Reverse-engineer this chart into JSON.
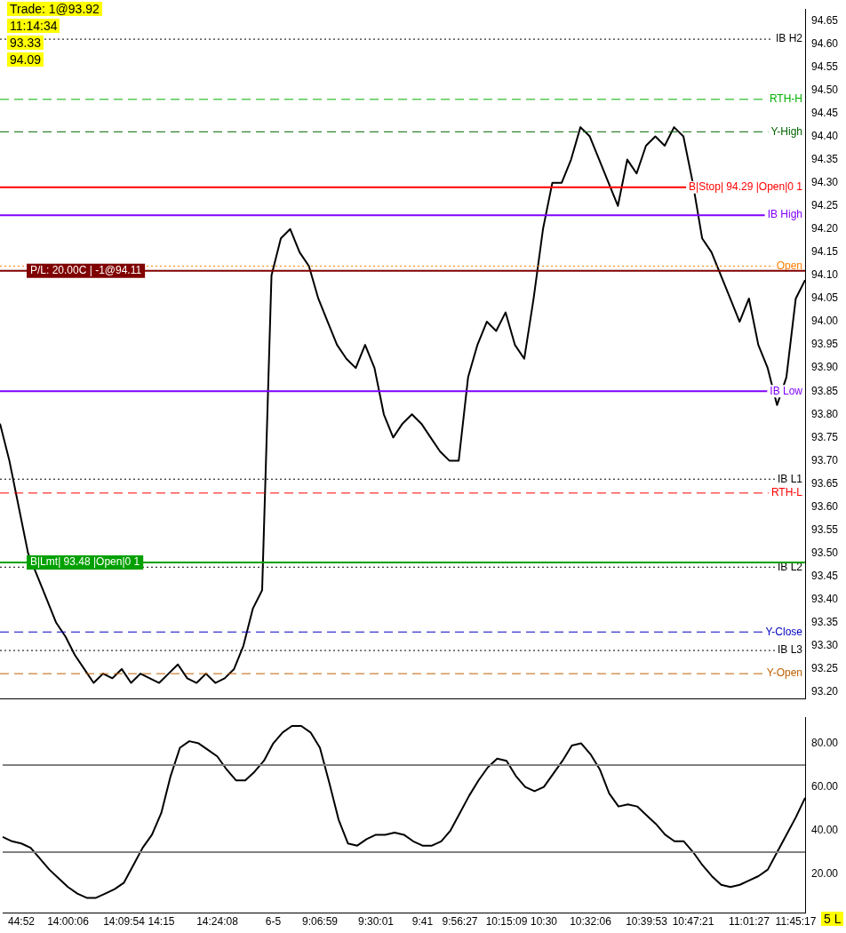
{
  "chart_data": [
    {
      "type": "line",
      "categories": [
        null,
        null,
        null,
        null,
        null,
        null,
        null,
        null,
        null,
        null,
        null,
        null,
        null,
        null,
        null,
        null,
        null,
        null,
        null,
        null,
        null,
        null,
        null,
        null,
        null,
        null,
        null,
        null,
        null,
        null,
        null,
        null,
        null,
        null,
        null,
        null,
        null,
        null,
        null,
        null,
        null,
        null,
        null,
        null,
        null,
        null,
        null,
        null,
        null,
        null,
        null,
        null,
        null,
        null,
        null,
        null,
        null,
        null,
        null,
        null,
        null,
        null,
        null,
        null,
        null,
        null,
        null,
        null,
        null,
        null,
        null,
        null,
        null,
        null,
        null,
        null,
        null,
        null,
        null,
        null,
        null,
        null,
        null,
        null,
        null,
        null,
        null
      ],
      "series": [
        {
          "color": "#000000",
          "values": [
            93.78,
            93.7,
            93.6,
            93.5,
            93.45,
            93.4,
            93.35,
            93.32,
            93.28,
            93.25,
            93.22,
            93.24,
            93.23,
            93.25,
            93.22,
            93.24,
            93.23,
            93.22,
            93.24,
            93.26,
            93.23,
            93.22,
            93.24,
            93.22,
            93.23,
            93.25,
            93.3,
            93.38,
            93.42,
            94.1,
            94.18,
            94.2,
            94.15,
            94.12,
            94.05,
            94.0,
            93.95,
            93.92,
            93.9,
            93.95,
            93.9,
            93.8,
            93.75,
            93.78,
            93.8,
            93.78,
            93.75,
            93.72,
            93.7,
            93.7,
            93.88,
            93.95,
            94.0,
            93.98,
            94.02,
            93.95,
            93.92,
            94.05,
            94.2,
            94.3,
            94.3,
            94.35,
            94.42,
            94.4,
            94.35,
            94.3,
            94.25,
            94.35,
            94.32,
            94.38,
            94.4,
            94.38,
            94.42,
            94.4,
            94.3,
            94.18,
            94.15,
            94.1,
            94.05,
            94.0,
            94.05,
            93.95,
            93.9,
            93.82,
            93.88,
            94.05,
            94.09
          ]
        }
      ],
      "ylim": [
        93.185,
        94.675
      ],
      "yticks": [
        {
          "value": 93.2,
          "label": "93.20"
        },
        {
          "value": 93.25,
          "label": "93.25"
        },
        {
          "value": 93.3,
          "label": "93.30"
        },
        {
          "value": 93.35,
          "label": "93.35"
        },
        {
          "value": 93.4,
          "label": "93.40"
        },
        {
          "value": 93.45,
          "label": "93.45"
        },
        {
          "value": 93.5,
          "label": "93.50"
        },
        {
          "value": 93.55,
          "label": "93.55"
        },
        {
          "value": 93.6,
          "label": "93.60"
        },
        {
          "value": 93.65,
          "label": "93.65"
        },
        {
          "value": 93.7,
          "label": "93.70"
        },
        {
          "value": 93.75,
          "label": "93.75"
        },
        {
          "value": 93.8,
          "label": "93.80"
        },
        {
          "value": 93.85,
          "label": "93.85"
        },
        {
          "value": 93.9,
          "label": "93.90"
        },
        {
          "value": 93.95,
          "label": "93.95"
        },
        {
          "value": 94.0,
          "label": "94.00"
        },
        {
          "value": 94.05,
          "label": "94.05"
        },
        {
          "value": 94.1,
          "label": "94.10"
        },
        {
          "value": 94.15,
          "label": "94.15"
        },
        {
          "value": 94.2,
          "label": "94.20"
        },
        {
          "value": 94.25,
          "label": "94.25"
        },
        {
          "value": 94.3,
          "label": "94.30"
        },
        {
          "value": 94.35,
          "label": "94.35"
        },
        {
          "value": 94.4,
          "label": "94.40"
        },
        {
          "value": 94.45,
          "label": "94.45"
        },
        {
          "value": 94.5,
          "label": "94.50"
        },
        {
          "value": 94.55,
          "label": "94.55"
        },
        {
          "value": 94.6,
          "label": "94.60"
        },
        {
          "value": 94.65,
          "label": "94.65"
        }
      ],
      "ref_lines": [
        {
          "axis": "y",
          "value": 94.61,
          "label": "IB H2",
          "color": "#000000",
          "line_style": "dotted"
        },
        {
          "axis": "y",
          "value": 94.48,
          "label": "RTH-H",
          "color": "#00b000",
          "line_style": "dashed"
        },
        {
          "axis": "y",
          "value": 94.41,
          "label": "Y-High",
          "color": "#006400",
          "line_style": "dashed"
        },
        {
          "axis": "y",
          "value": 94.23,
          "label": "IB High",
          "color": "#8000ff",
          "line_style": "solid"
        },
        {
          "axis": "y",
          "value": 94.12,
          "label": "Open",
          "color": "#ff8000",
          "line_style": "dotted"
        },
        {
          "axis": "y",
          "value": 93.85,
          "label": "IB Low",
          "color": "#8000ff",
          "line_style": "solid"
        },
        {
          "axis": "y",
          "value": 93.66,
          "label": "IB L1",
          "color": "#000000",
          "line_style": "dotted"
        },
        {
          "axis": "y",
          "value": 93.63,
          "label": "RTH-L",
          "color": "#ff0000",
          "line_style": "dashed"
        },
        {
          "axis": "y",
          "value": 93.47,
          "label": "IB L2",
          "color": "#000000",
          "line_style": "dotted"
        },
        {
          "axis": "y",
          "value": 93.33,
          "label": "Y-Close",
          "color": "#0000c0",
          "line_style": "dashed"
        },
        {
          "axis": "y",
          "value": 93.29,
          "label": "IB L3",
          "color": "#000000",
          "line_style": "dotted"
        },
        {
          "axis": "y",
          "value": 93.24,
          "label": "Y-Open",
          "color": "#c06000",
          "line_style": "dashed"
        },
        {
          "axis": "y",
          "value": 94.29,
          "label": "B|Stop| 94.29 |Open|0 1",
          "color": "#ff0000",
          "line_style": "solid"
        },
        {
          "axis": "y",
          "value": 94.11,
          "label": "P/L: 20.00C | -1@94.11",
          "color": "#800000",
          "line_style": "solid"
        },
        {
          "axis": "y",
          "value": 93.48,
          "label": "B|Lmt| 93.48 |Open|0 1",
          "color": "#00a000",
          "line_style": "solid"
        }
      ],
      "annotations": [
        "Trade: 1@93.92",
        "11:14:34",
        "93.33",
        "94.09"
      ],
      "tick_labels": "y",
      "marker": "none",
      "grid": false
    },
    {
      "type": "line",
      "categories": [
        null,
        null,
        "44:52",
        null,
        null,
        null,
        null,
        "14:00:06",
        null,
        null,
        null,
        null,
        null,
        "14:09:54",
        null,
        null,
        null,
        "14:15",
        null,
        null,
        null,
        null,
        null,
        "14:24:08",
        null,
        null,
        null,
        null,
        null,
        "6-5",
        null,
        null,
        null,
        null,
        "9:06:59",
        null,
        null,
        null,
        null,
        null,
        "9:30:01",
        null,
        null,
        null,
        null,
        "9:41",
        null,
        null,
        null,
        "9:56:27",
        null,
        null,
        null,
        null,
        "10:15:09",
        null,
        null,
        null,
        "10:30",
        null,
        null,
        null,
        null,
        "10:32:06",
        null,
        null,
        null,
        null,
        null,
        "10:39:53",
        null,
        null,
        null,
        null,
        "10:47:21",
        null,
        null,
        null,
        null,
        null,
        "11:01:27",
        null,
        null,
        null,
        null,
        "11:45:17",
        null
      ],
      "series": [
        {
          "color": "#000000",
          "values": [
            37,
            35,
            34,
            32,
            27,
            22,
            18,
            14,
            11,
            9,
            9,
            11,
            13,
            16,
            24,
            32,
            38,
            48,
            65,
            78,
            81,
            80,
            77,
            74,
            68,
            63,
            63,
            67,
            72,
            80,
            85,
            88,
            88,
            85,
            78,
            62,
            45,
            34,
            33,
            36,
            38,
            38,
            39,
            38,
            35,
            33,
            33,
            35,
            40,
            48,
            56,
            63,
            69,
            73,
            72,
            65,
            60,
            58,
            60,
            66,
            72,
            79,
            80,
            75,
            68,
            57,
            51,
            52,
            51,
            47,
            43,
            38,
            35,
            35,
            30,
            24,
            19,
            15,
            14,
            15,
            17,
            19,
            22,
            30,
            38,
            46,
            55
          ]
        }
      ],
      "ylim": [
        2,
        92
      ],
      "yticks": [
        {
          "value": 20,
          "label": "20.00"
        },
        {
          "value": 40,
          "label": "40.00"
        },
        {
          "value": 60,
          "label": "60.00"
        },
        {
          "value": 80,
          "label": "80.00"
        }
      ],
      "ref_lines": [
        {
          "axis": "y",
          "value": 70,
          "color": "#808080",
          "line_style": "solid"
        },
        {
          "axis": "y",
          "value": 30,
          "color": "#808080",
          "line_style": "solid"
        }
      ],
      "annotations": [
        "5 L"
      ],
      "marker": "none",
      "grid": false
    }
  ]
}
